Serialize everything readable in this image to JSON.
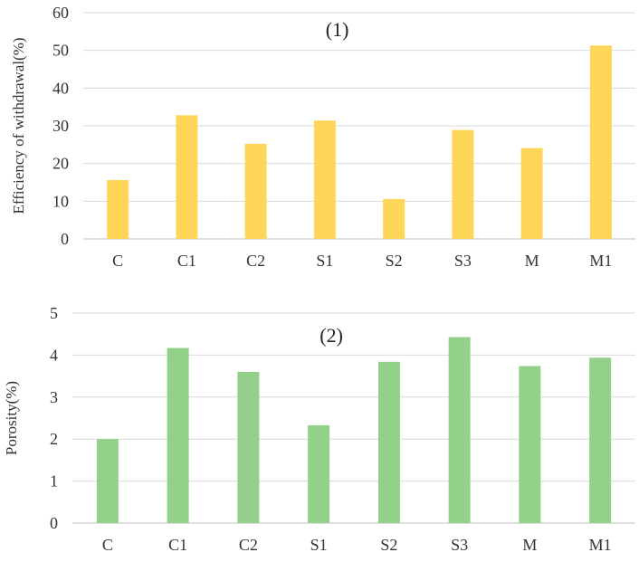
{
  "chart_data": [
    {
      "type": "bar",
      "title": "(1)",
      "xlabel": "",
      "ylabel": "Efficiency of  withdrawal(%)",
      "categories": [
        "C",
        "C1",
        "C2",
        "S1",
        "S2",
        "S3",
        "M",
        "M1"
      ],
      "values": [
        15.6,
        32.8,
        25.2,
        31.4,
        10.6,
        28.9,
        24.1,
        51.3
      ],
      "ylim": [
        0,
        60
      ],
      "yticks": [
        0,
        10,
        20,
        30,
        40,
        50,
        60
      ],
      "grid": true,
      "legend": "none",
      "color": "#FFD659"
    },
    {
      "type": "bar",
      "title": "(2)",
      "xlabel": "",
      "ylabel": "Porosity(%)",
      "categories": [
        "C",
        "C1",
        "C2",
        "S1",
        "S2",
        "S3",
        "M",
        "M1"
      ],
      "values": [
        2.0,
        4.17,
        3.6,
        2.33,
        3.84,
        4.43,
        3.74,
        3.94
      ],
      "ylim": [
        0,
        5
      ],
      "yticks": [
        0,
        1,
        2,
        3,
        4,
        5
      ],
      "grid": true,
      "legend": "none",
      "color": "#93D18A"
    }
  ]
}
